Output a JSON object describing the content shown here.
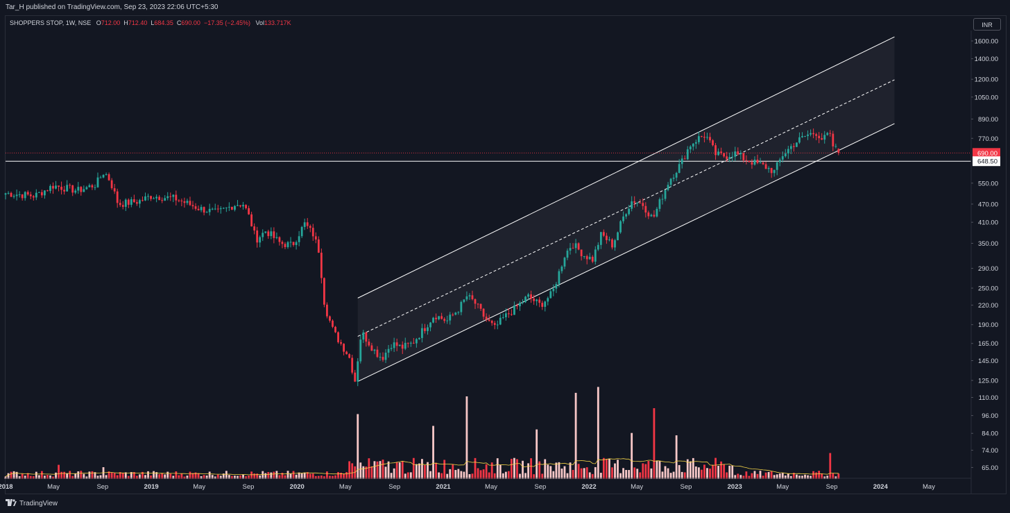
{
  "header": {
    "published": "Tar_H published on TradingView.com, Sep 23, 2023 22:06 UTC+5:30"
  },
  "legend": {
    "symbol": "SHOPPERS STOP, 1W, NSE",
    "o_label": "O",
    "o_value": "712.00",
    "h_label": "H",
    "h_value": "712.40",
    "l_label": "L",
    "l_value": "684.35",
    "c_label": "C",
    "c_value": "690.00",
    "change": "−17.35 (−2.45%)",
    "vol_label": "Vol",
    "vol_value": "133.717K"
  },
  "currency_button": "INR",
  "footer": {
    "logo_icon": "tradingview-logo-icon",
    "brand": "TradingView"
  },
  "colors": {
    "background": "#131722",
    "up": "#26a69a",
    "down": "#f23645",
    "vol_up": "#f8c8c8",
    "vol_down": "#f23645",
    "vol_ma": "#f5d547",
    "channel": "#ffffff",
    "price_line": "#f23645"
  },
  "chart_data": {
    "type": "candlestick",
    "symbol": "SHOPPERS STOP",
    "interval": "1W",
    "exchange": "NSE",
    "y_scale": "log",
    "ylim": [
      60,
      1700
    ],
    "y_ticks": [
      "1600.00",
      "1400.00",
      "1200.00",
      "1050.00",
      "890.00",
      "770.00",
      "690.00",
      "648.50",
      "550.00",
      "470.00",
      "410.00",
      "350.00",
      "290.00",
      "250.00",
      "220.00",
      "190.00",
      "165.00",
      "145.00",
      "125.00",
      "110.00",
      "96.00",
      "84.00",
      "74.00",
      "65.00"
    ],
    "x_ticks": [
      "2018",
      "May",
      "Sep",
      "2019",
      "May",
      "Sep",
      "2020",
      "May",
      "Sep",
      "2021",
      "May",
      "Sep",
      "2022",
      "May",
      "Sep",
      "2023",
      "May",
      "Sep",
      "2024",
      "May"
    ],
    "x_tick_dates": [
      "2018-01-01",
      "2018-05-01",
      "2018-09-01",
      "2019-01-01",
      "2019-05-01",
      "2019-09-01",
      "2020-01-01",
      "2020-05-01",
      "2020-09-01",
      "2021-01-01",
      "2021-05-01",
      "2021-09-01",
      "2022-01-01",
      "2022-05-01",
      "2022-09-01",
      "2023-01-01",
      "2023-05-01",
      "2023-09-01",
      "2024-01-01",
      "2024-05-01"
    ],
    "xlim": [
      "2018-01-01",
      "2024-08-15"
    ],
    "close_key_points": [
      [
        "2018-01-01",
        510
      ],
      [
        "2018-03-15",
        500
      ],
      [
        "2018-05-01",
        540
      ],
      [
        "2018-07-01",
        520
      ],
      [
        "2018-08-15",
        545
      ],
      [
        "2018-09-05",
        600
      ],
      [
        "2018-09-20",
        560
      ],
      [
        "2018-10-10",
        470
      ],
      [
        "2018-12-01",
        480
      ],
      [
        "2019-01-01",
        500
      ],
      [
        "2019-03-01",
        490
      ],
      [
        "2019-05-01",
        455
      ],
      [
        "2019-06-15",
        440
      ],
      [
        "2019-08-01",
        470
      ],
      [
        "2019-08-20",
        470
      ],
      [
        "2019-09-05",
        420
      ],
      [
        "2019-09-20",
        360
      ],
      [
        "2019-10-15",
        385
      ],
      [
        "2019-11-20",
        350
      ],
      [
        "2019-12-20",
        345
      ],
      [
        "2020-01-10",
        385
      ],
      [
        "2020-01-20",
        405
      ],
      [
        "2020-02-10",
        375
      ],
      [
        "2020-02-25",
        330
      ],
      [
        "2020-03-10",
        220
      ],
      [
        "2020-04-01",
        180
      ],
      [
        "2020-05-10",
        150
      ],
      [
        "2020-05-25",
        125
      ],
      [
        "2020-06-10",
        180
      ],
      [
        "2020-07-15",
        155
      ],
      [
        "2020-08-01",
        148
      ],
      [
        "2020-08-25",
        165
      ],
      [
        "2020-09-20",
        160
      ],
      [
        "2020-10-15",
        165
      ],
      [
        "2020-11-15",
        185
      ],
      [
        "2020-12-10",
        205
      ],
      [
        "2021-01-10",
        195
      ],
      [
        "2021-02-10",
        215
      ],
      [
        "2021-03-01",
        235
      ],
      [
        "2021-03-20",
        225
      ],
      [
        "2021-04-15",
        200
      ],
      [
        "2021-05-10",
        185
      ],
      [
        "2021-06-01",
        200
      ],
      [
        "2021-07-01",
        215
      ],
      [
        "2021-08-01",
        235
      ],
      [
        "2021-09-01",
        220
      ],
      [
        "2021-10-01",
        240
      ],
      [
        "2021-11-01",
        320
      ],
      [
        "2021-11-20",
        350
      ],
      [
        "2021-12-20",
        320
      ],
      [
        "2022-01-10",
        310
      ],
      [
        "2022-02-01",
        375
      ],
      [
        "2022-03-01",
        345
      ],
      [
        "2022-04-01",
        440
      ],
      [
        "2022-04-20",
        485
      ],
      [
        "2022-05-15",
        470
      ],
      [
        "2022-06-10",
        420
      ],
      [
        "2022-07-01",
        490
      ],
      [
        "2022-07-20",
        560
      ],
      [
        "2022-08-20",
        640
      ],
      [
        "2022-09-10",
        730
      ],
      [
        "2022-10-01",
        770
      ],
      [
        "2022-10-20",
        790
      ],
      [
        "2022-11-15",
        680
      ],
      [
        "2022-12-10",
        675
      ],
      [
        "2023-01-01",
        690
      ],
      [
        "2023-01-25",
        660
      ],
      [
        "2023-02-20",
        640
      ],
      [
        "2023-03-15",
        625
      ],
      [
        "2023-04-10",
        600
      ],
      [
        "2023-05-01",
        680
      ],
      [
        "2023-06-01",
        745
      ],
      [
        "2023-07-01",
        790
      ],
      [
        "2023-07-25",
        805
      ],
      [
        "2023-08-10",
        760
      ],
      [
        "2023-08-25",
        800
      ],
      [
        "2023-09-05",
        720
      ],
      [
        "2023-09-15",
        705
      ],
      [
        "2023-09-23",
        690
      ]
    ],
    "last_bar": {
      "date": "2023-09-18",
      "open": 712.0,
      "high": 712.4,
      "low": 684.35,
      "close": 690.0,
      "volume": "133.717K"
    },
    "horizontal_level": 648.5,
    "last_price": 690.0,
    "parallel_channel": {
      "start": "2020-06-01",
      "end": "2024-02-05",
      "upper_start": 232,
      "upper_end": 1650,
      "mid_start": 174,
      "mid_end": 1195,
      "lower_start": 124,
      "lower_end": 860
    },
    "volume_panel": {
      "ma_line": true,
      "spikes": [
        [
          "2020-06-01",
          0.55,
          "up"
        ],
        [
          "2021-03-01",
          0.7,
          "up"
        ],
        [
          "2020-12-10",
          0.45,
          "up"
        ],
        [
          "2021-08-20",
          0.42,
          "up"
        ],
        [
          "2021-12-01",
          0.73,
          "up"
        ],
        [
          "2022-01-25",
          0.78,
          "up"
        ],
        [
          "2022-06-10",
          0.6,
          "up"
        ],
        [
          "2022-08-05",
          0.37,
          "up"
        ],
        [
          "2022-04-20",
          0.39,
          "up"
        ],
        [
          "2023-08-25",
          0.22,
          "down"
        ],
        [
          "2018-05-15",
          0.12,
          "down"
        ],
        [
          "2018-09-05",
          0.1,
          "up"
        ]
      ]
    }
  }
}
